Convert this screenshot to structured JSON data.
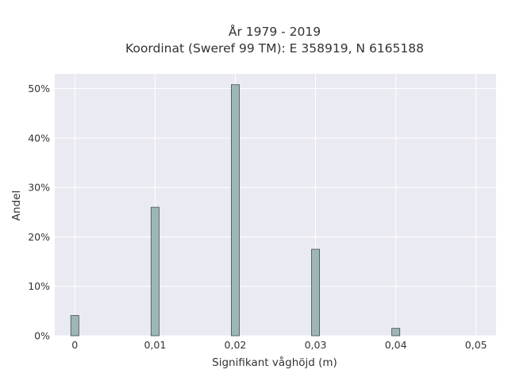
{
  "chart_data": {
    "type": "bar",
    "title_line1": "År 1979 - 2019",
    "title_line2": "Koordinat (Sweref 99 TM): E 358919, N 6165188",
    "xlabel": "Signifikant våghöjd (m)",
    "ylabel": "Andel",
    "x_ticks": [
      {
        "value": 0,
        "label": "0"
      },
      {
        "value": 0.01,
        "label": "0,01"
      },
      {
        "value": 0.02,
        "label": "0,02"
      },
      {
        "value": 0.03,
        "label": "0,03"
      },
      {
        "value": 0.04,
        "label": "0,04"
      },
      {
        "value": 0.05,
        "label": "0,05"
      }
    ],
    "y_ticks": [
      {
        "value": 0,
        "label": "0%"
      },
      {
        "value": 10,
        "label": "10%"
      },
      {
        "value": 20,
        "label": "20%"
      },
      {
        "value": 30,
        "label": "30%"
      },
      {
        "value": 40,
        "label": "40%"
      },
      {
        "value": 50,
        "label": "50%"
      }
    ],
    "xlim": [
      -0.0025,
      0.0525
    ],
    "ylim": [
      0,
      53
    ],
    "bar_width": 0.001,
    "bars": [
      {
        "x": 0,
        "value": 4.1
      },
      {
        "x": 0.01,
        "value": 26
      },
      {
        "x": 0.02,
        "value": 50.8
      },
      {
        "x": 0.03,
        "value": 17.5
      },
      {
        "x": 0.04,
        "value": 1.5
      }
    ],
    "grid": true,
    "colors": {
      "background": "#ffffff",
      "plot_background": "#eaeaf2",
      "grid": "#ffffff",
      "bar_fill": "#9fb6b6",
      "bar_stroke": "#3f5050",
      "text": "#333333"
    }
  }
}
